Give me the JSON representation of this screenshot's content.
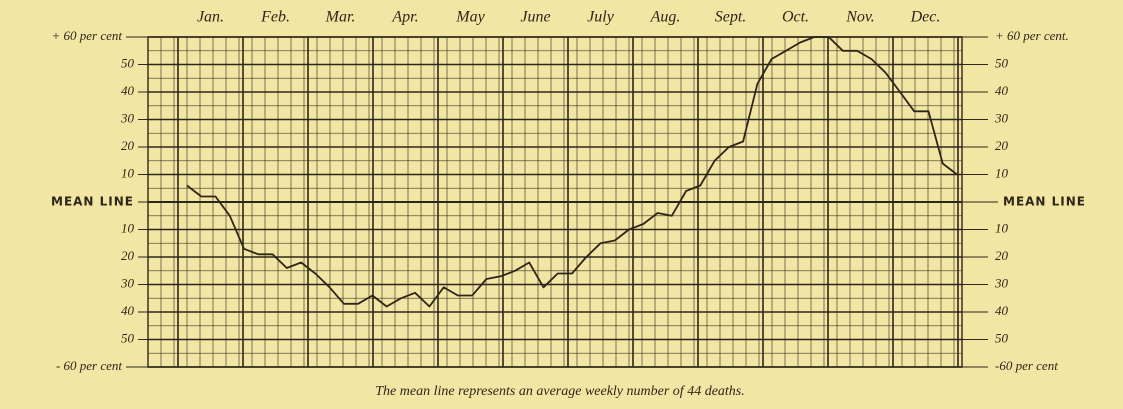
{
  "chart_data": {
    "type": "line",
    "months": [
      "Jan.",
      "Feb.",
      "Mar.",
      "Apr.",
      "May",
      "June",
      "July",
      "Aug.",
      "Sept.",
      "Oct.",
      "Nov.",
      "Dec."
    ],
    "values": [
      6,
      2,
      2,
      -5,
      -17,
      -19,
      -19,
      -24,
      -22,
      -26,
      -31,
      -37,
      -37,
      -34,
      -38,
      -35,
      -33,
      -38,
      -31,
      -34,
      -34,
      -28,
      -27,
      -25,
      -22,
      -31,
      -26,
      -26,
      -20,
      -15,
      -14,
      -10,
      -8,
      -4,
      -5,
      4,
      6,
      15,
      20,
      22,
      43,
      52,
      55,
      58,
      60,
      60,
      55,
      55,
      52,
      47,
      40,
      33,
      33,
      14,
      10
    ],
    "color": "#2e2618",
    "ylim": [
      -60,
      60
    ],
    "yticks": [
      {
        "value": 60,
        "label": "+ 60 per cent"
      },
      50,
      40,
      30,
      20,
      10,
      {
        "value": 0,
        "label": "MEAN LINE"
      },
      {
        "value": -10,
        "label": "10"
      },
      {
        "value": -20,
        "label": "20"
      },
      {
        "value": -30,
        "label": "30"
      },
      {
        "value": -40,
        "label": "40"
      },
      {
        "value": -50,
        "label": "50"
      },
      {
        "value": -60,
        "label": "- 60 per cent"
      }
    ],
    "y2lim": [
      -60,
      60
    ],
    "y2ticks": [
      {
        "value": 60,
        "label": "+ 60 per cent."
      },
      50,
      40,
      30,
      20,
      10,
      {
        "value": 0,
        "label": "MEAN LINE"
      },
      {
        "value": -10,
        "label": "10"
      },
      {
        "value": -20,
        "label": "20"
      },
      {
        "value": -30,
        "label": "30"
      },
      {
        "value": -40,
        "label": "40"
      },
      {
        "value": -50,
        "label": "50"
      },
      {
        "value": -60,
        "label": "-60 per cent"
      }
    ],
    "caption": "The mean line represents an average weekly number of 44 deaths."
  }
}
